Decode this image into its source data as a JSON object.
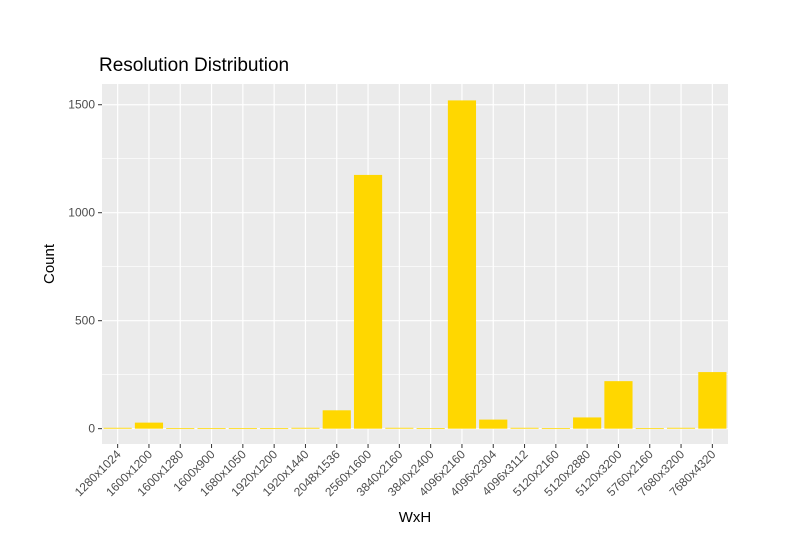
{
  "chart_data": {
    "type": "bar",
    "title": "Resolution Distribution",
    "xlabel": "WxH",
    "ylabel": "Count",
    "categories": [
      "1280x1024",
      "1600x1200",
      "1600x1280",
      "1600x900",
      "1680x1050",
      "1920x1200",
      "1920x1440",
      "2048x1536",
      "2560x1600",
      "3840x2160",
      "3840x2400",
      "4096x2160",
      "4096x2304",
      "4096x3112",
      "5120x2160",
      "5120x2880",
      "5120x3200",
      "5760x2160",
      "7680x3200",
      "7680x4320"
    ],
    "values": [
      4,
      28,
      2,
      2,
      2,
      2,
      4,
      85,
      1175,
      4,
      2,
      1520,
      42,
      4,
      2,
      52,
      220,
      2,
      4,
      262
    ],
    "yticks": [
      0,
      500,
      1000,
      1500
    ],
    "ylim": [
      -71,
      1596
    ],
    "bar_color": "#FFD700",
    "panel_color": "#EBEBEB",
    "grid": true,
    "legend": "none"
  }
}
